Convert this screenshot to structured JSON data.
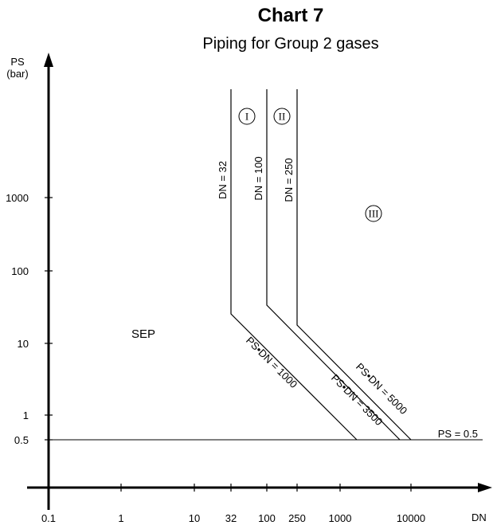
{
  "chart_data": {
    "type": "diagram",
    "title": "Chart 7",
    "subtitle": "Piping for Group 2 gases",
    "ylabel": [
      "PS",
      "(bar)"
    ],
    "xlabel": "DN",
    "x_ticks": [
      "0.1",
      "1",
      "10",
      "32",
      "100",
      "250",
      "1000",
      "10000"
    ],
    "y_ticks": [
      "1000",
      "100",
      "10",
      "1",
      "0.5"
    ],
    "boundaries": [
      {
        "label": "DN = 32",
        "dn": 32,
        "ps_dn": 1000,
        "ps_dn_label": "PS•DN = 1000"
      },
      {
        "label": "DN = 100",
        "dn": 100,
        "ps_dn": 3500,
        "ps_dn_label": "PS•DN = 3500"
      },
      {
        "label": "DN = 250",
        "dn": 250,
        "ps_dn": 5000,
        "ps_dn_label": "PS•DN = 5000"
      }
    ],
    "ps_limit": {
      "label": "PS = 0.5",
      "value": 0.5
    },
    "regions": [
      "SEP",
      "I",
      "II",
      "III"
    ]
  }
}
